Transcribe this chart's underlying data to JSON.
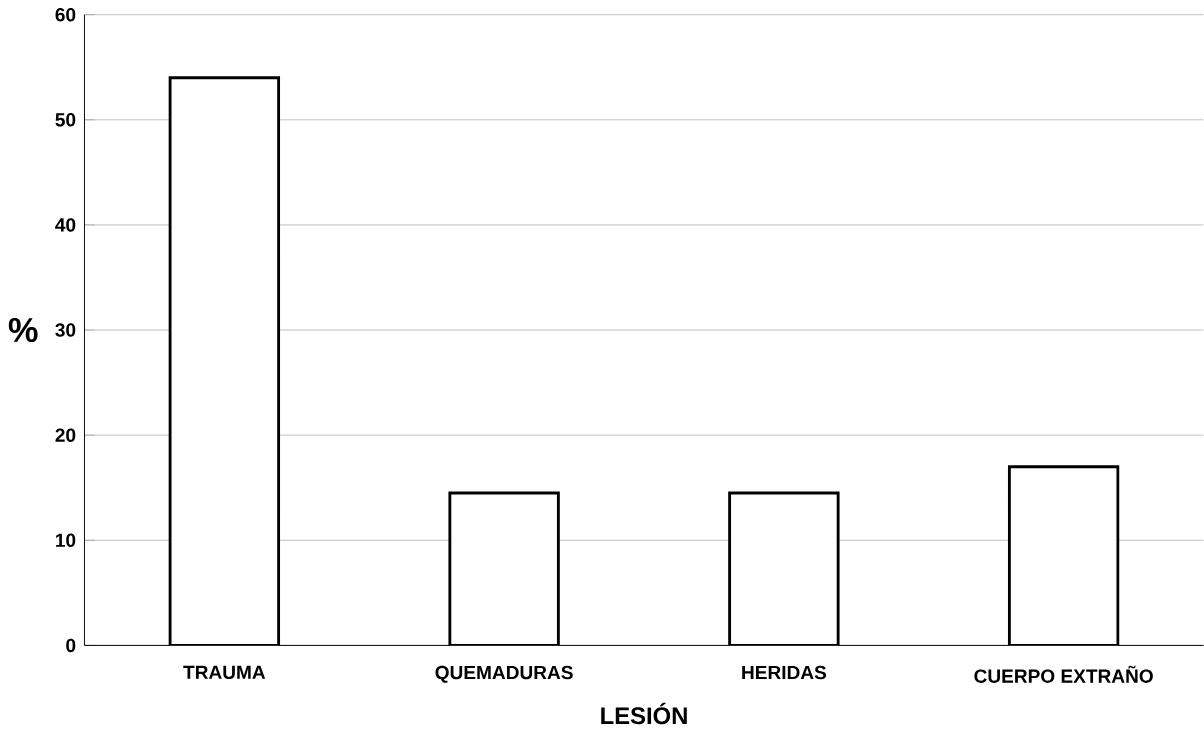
{
  "chart_data": {
    "type": "bar",
    "xlabel": "LESIÓN",
    "ylabel": "%",
    "categories": [
      "TRAUMA",
      "QUEMADURAS",
      "HERIDAS",
      "CUERPO EXTRAÑO"
    ],
    "values": [
      54,
      14.5,
      14.5,
      17
    ],
    "color": "#ffffff",
    "ylim": [
      0,
      60
    ],
    "yticks": [
      0,
      10,
      20,
      30,
      40,
      50,
      60
    ],
    "grid": "y"
  }
}
